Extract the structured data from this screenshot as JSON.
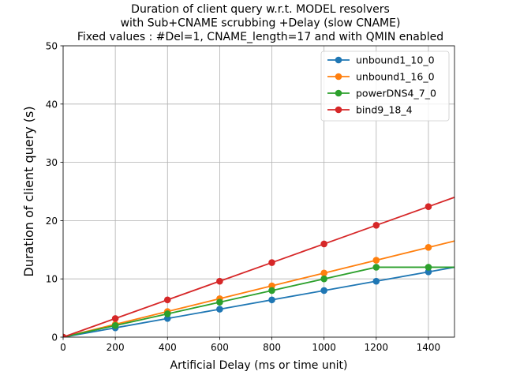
{
  "chart_data": {
    "type": "line",
    "title_lines": [
      "Duration of client query w.r.t. MODEL resolvers",
      "with Sub+CNAME scrubbing +Delay (slow CNAME)",
      "Fixed values : #Del=1, CNAME_length=17 and with QMIN enabled"
    ],
    "xlabel": "Artificial Delay (ms or time unit)",
    "ylabel": "Duration of client query (s)",
    "xlim": [
      0,
      1500
    ],
    "ylim": [
      0,
      50
    ],
    "xticks": [
      0,
      200,
      400,
      600,
      800,
      1000,
      1200,
      1400
    ],
    "yticks": [
      0,
      10,
      20,
      30,
      40,
      50
    ],
    "grid": true,
    "legend_position": "top-right",
    "series": [
      {
        "name": "unbound1_10_0",
        "color": "#1f77b4",
        "x": [
          0,
          200,
          400,
          600,
          800,
          1000,
          1200,
          1400
        ],
        "y": [
          0,
          1.6,
          3.2,
          4.8,
          6.4,
          8.0,
          9.6,
          11.2
        ],
        "line_end": [
          1500,
          12.0
        ]
      },
      {
        "name": "unbound1_16_0",
        "color": "#ff7f0e",
        "x": [
          0,
          200,
          400,
          600,
          800,
          1000,
          1200,
          1400
        ],
        "y": [
          0,
          2.2,
          4.4,
          6.6,
          8.8,
          11.0,
          13.2,
          15.4
        ],
        "line_end": [
          1500,
          16.5
        ]
      },
      {
        "name": "powerDNS4_7_0",
        "color": "#2ca02c",
        "x": [
          0,
          200,
          400,
          600,
          800,
          1000,
          1200,
          1400
        ],
        "y": [
          0,
          2.0,
          4.0,
          6.0,
          8.0,
          10.0,
          12.0,
          12.0
        ],
        "line_end": [
          1500,
          12.0
        ]
      },
      {
        "name": "bind9_18_4",
        "color": "#d62728",
        "x": [
          0,
          200,
          400,
          600,
          800,
          1000,
          1200,
          1400
        ],
        "y": [
          0,
          3.2,
          6.4,
          9.6,
          12.8,
          16.0,
          19.2,
          22.4
        ],
        "line_end": [
          1500,
          24.0
        ]
      }
    ]
  }
}
